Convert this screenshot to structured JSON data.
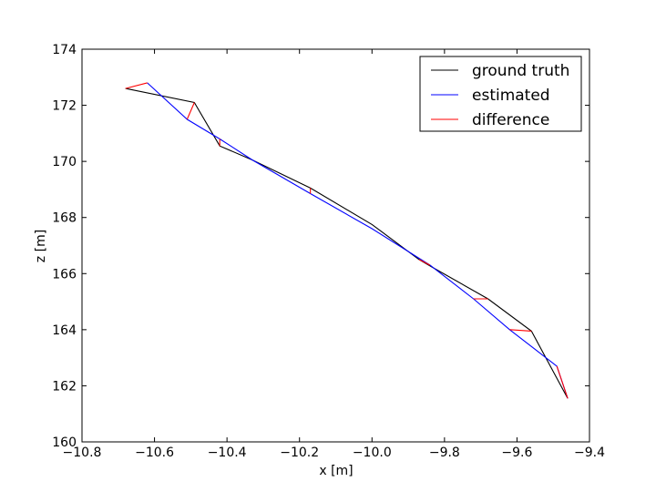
{
  "chart_data": {
    "type": "line",
    "title": "",
    "xlabel": "x [m]",
    "ylabel": "z [m]",
    "xlim": [
      -10.8,
      -9.4
    ],
    "ylim": [
      160,
      174
    ],
    "xticks": [
      -10.8,
      -10.6,
      -10.4,
      -10.2,
      -10.0,
      -9.8,
      -9.6,
      -9.4
    ],
    "xtick_labels": [
      "−10.8",
      "−10.6",
      "−10.4",
      "−10.2",
      "−10.0",
      "−9.8",
      "−9.6",
      "−9.4"
    ],
    "yticks": [
      160,
      162,
      164,
      166,
      168,
      170,
      172,
      174
    ],
    "ytick_labels": [
      "160",
      "162",
      "164",
      "166",
      "168",
      "170",
      "172",
      "174"
    ],
    "grid": false,
    "legend_position": "top-right",
    "series": [
      {
        "name": "ground truth",
        "color": "#000000",
        "points": [
          [
            -10.68,
            172.6
          ],
          [
            -10.49,
            172.1
          ],
          [
            -10.42,
            170.55
          ],
          [
            -10.33,
            170.05
          ],
          [
            -10.17,
            169.05
          ],
          [
            -10.0,
            167.75
          ],
          [
            -9.87,
            166.5
          ],
          [
            -9.83,
            166.2
          ],
          [
            -9.68,
            165.1
          ],
          [
            -9.56,
            163.95
          ],
          [
            -9.46,
            161.55
          ]
        ]
      },
      {
        "name": "estimated",
        "color": "#0000ff",
        "points": [
          [
            -10.62,
            172.8
          ],
          [
            -10.51,
            171.5
          ],
          [
            -10.42,
            170.8
          ],
          [
            -10.33,
            170.05
          ],
          [
            -10.17,
            168.85
          ],
          [
            -10.0,
            167.6
          ],
          [
            -9.84,
            166.3
          ],
          [
            -9.72,
            165.1
          ],
          [
            -9.62,
            164.0
          ],
          [
            -9.49,
            162.7
          ],
          [
            -9.46,
            161.55
          ]
        ]
      },
      {
        "name": "difference",
        "color": "#ff0000",
        "segments": [
          [
            [
              -10.68,
              172.6
            ],
            [
              -10.62,
              172.8
            ]
          ],
          [
            [
              -10.49,
              172.1
            ],
            [
              -10.51,
              171.5
            ]
          ],
          [
            [
              -10.42,
              170.55
            ],
            [
              -10.42,
              170.8
            ]
          ],
          [
            [
              -10.17,
              169.05
            ],
            [
              -10.17,
              168.85
            ]
          ],
          [
            [
              -9.87,
              166.5
            ],
            [
              -9.84,
              166.3
            ]
          ],
          [
            [
              -9.68,
              165.1
            ],
            [
              -9.72,
              165.1
            ]
          ],
          [
            [
              -9.56,
              163.95
            ],
            [
              -9.62,
              164.0
            ]
          ],
          [
            [
              -9.46,
              161.55
            ],
            [
              -9.49,
              162.7
            ]
          ]
        ]
      }
    ],
    "colors": {
      "axes": "#000000",
      "background": "#ffffff"
    }
  }
}
